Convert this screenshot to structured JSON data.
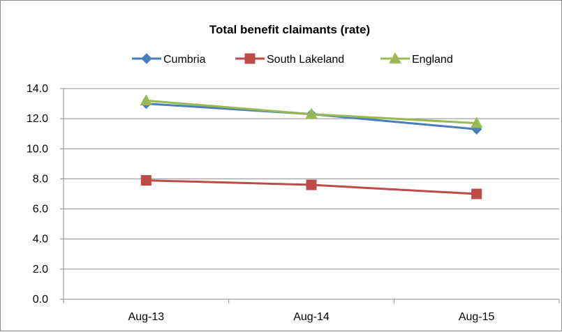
{
  "chart_data": {
    "type": "line",
    "title": "Total benefit claimants (rate)",
    "categories": [
      "Aug-13",
      "Aug-14",
      "Aug-15"
    ],
    "ylim": [
      0,
      14
    ],
    "y_ticks": [
      "0.0",
      "2.0",
      "4.0",
      "6.0",
      "8.0",
      "10.0",
      "12.0",
      "14.0"
    ],
    "grid": true,
    "legend_position": "top",
    "series": [
      {
        "name": "Cumbria",
        "values": [
          13.0,
          12.3,
          11.3
        ],
        "color": "#4a7ebb",
        "marker": "diamond"
      },
      {
        "name": "South Lakeland",
        "values": [
          7.9,
          7.6,
          7.0
        ],
        "color": "#be4b48",
        "marker": "square"
      },
      {
        "name": "England",
        "values": [
          13.2,
          12.3,
          11.7
        ],
        "color": "#98b954",
        "marker": "triangle"
      }
    ]
  }
}
